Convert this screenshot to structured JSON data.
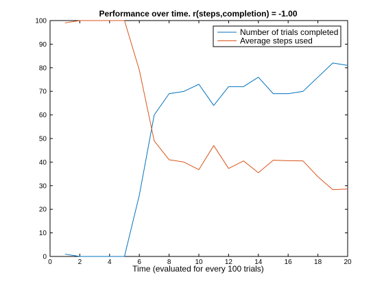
{
  "chart_data": {
    "type": "line",
    "title": "Performance over time. r(steps,completion) = -1.00",
    "xlabel": "Time (evaluated for every 100 trials)",
    "ylabel": "",
    "xlim": [
      0,
      20
    ],
    "ylim": [
      0,
      100
    ],
    "xticks": [
      0,
      2,
      4,
      6,
      8,
      10,
      12,
      14,
      16,
      18,
      20
    ],
    "yticks": [
      0,
      10,
      20,
      30,
      40,
      50,
      60,
      70,
      80,
      90,
      100
    ],
    "grid": false,
    "legend_position": "top-right",
    "x": [
      1,
      2,
      3,
      4,
      5,
      6,
      7,
      8,
      9,
      10,
      11,
      12,
      13,
      14,
      15,
      16,
      17,
      18,
      19,
      20
    ],
    "series": [
      {
        "name": "Number of trials completed",
        "color": "#0072bd",
        "values": [
          1,
          0,
          0,
          0,
          0,
          26,
          60,
          69,
          70,
          73,
          64,
          72,
          72,
          76,
          69,
          69,
          70,
          76,
          82,
          81
        ]
      },
      {
        "name": "Average steps used",
        "color": "#d95319",
        "values": [
          99,
          100,
          100,
          100,
          100,
          79,
          49,
          41,
          40,
          36.8,
          47,
          37.3,
          40.5,
          35.5,
          40.8,
          40.6,
          40.5,
          33.8,
          28.3,
          28.6
        ]
      }
    ]
  }
}
